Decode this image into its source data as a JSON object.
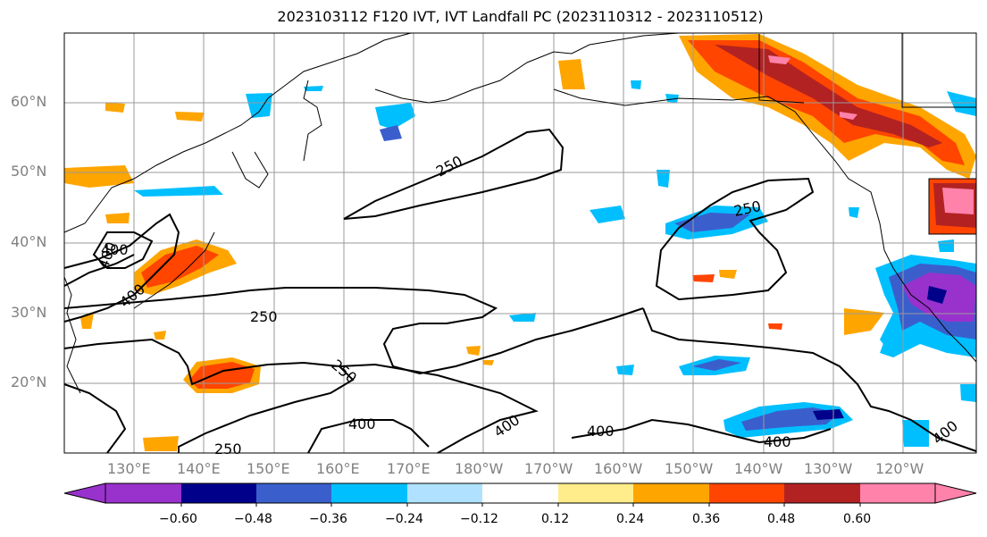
{
  "title": "2023103112 F120 IVT, IVT Landfall PC (2023110312 - 2023110512)",
  "lat_labels": [
    "60°N",
    "50°N",
    "40°N",
    "30°N",
    "20°N"
  ],
  "lon_labels": [
    "130°E",
    "140°E",
    "150°E",
    "160°E",
    "170°E",
    "180°W",
    "170°W",
    "160°W",
    "150°W",
    "140°W",
    "130°W",
    "120°W"
  ],
  "colorbar": {
    "ticks": [
      "−0.60",
      "−0.48",
      "−0.36",
      "−0.24",
      "−0.12",
      "0.12",
      "0.24",
      "0.36",
      "0.48",
      "0.60"
    ],
    "colors": [
      "#9932CC",
      "#00008B",
      "#3A5FCD",
      "#00BFFF",
      "#B0E2FF",
      "#FFFFFF",
      "#FFEC8B",
      "#FFA500",
      "#FF4500",
      "#B22222",
      "#FF82AB"
    ]
  },
  "contour_labels": [
    "250",
    "250",
    "250",
    "250",
    "250",
    "400",
    "400",
    "400",
    "400",
    "400",
    "400",
    "400",
    "400"
  ]
}
